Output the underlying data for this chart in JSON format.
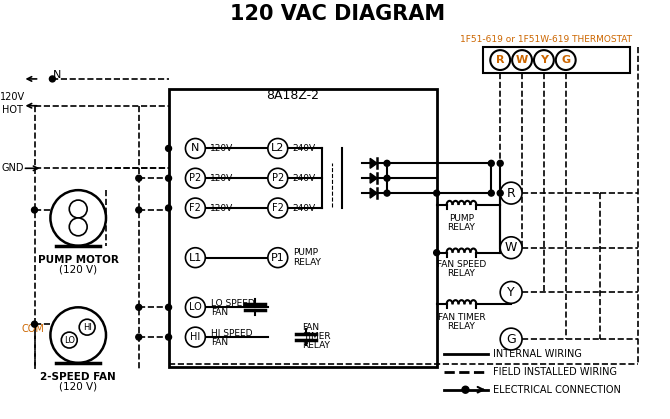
{
  "title": "120 VAC DIAGRAM",
  "bg_color": "#ffffff",
  "orange": "#cc6600",
  "black": "#000000",
  "thermostat_label": "1F51-619 or 1F51W-619 THERMOSTAT",
  "box_label": "8A18Z-2",
  "legend_internal": "INTERNAL WIRING",
  "legend_field": "FIELD INSTALLED WIRING",
  "legend_elec": "ELECTRICAL CONNECTION"
}
